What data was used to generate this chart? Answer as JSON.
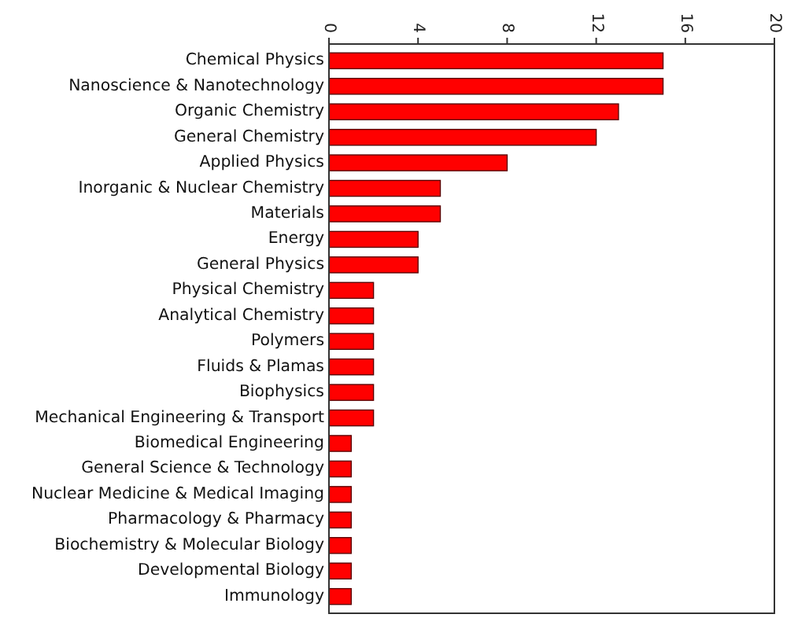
{
  "chart_data": {
    "type": "bar",
    "orientation": "horizontal",
    "categories": [
      "Chemical Physics",
      "Nanoscience & Nanotechnology",
      "Organic Chemistry",
      "General Chemistry",
      "Applied Physics",
      "Inorganic & Nuclear Chemistry",
      "Materials",
      "Energy",
      "General Physics",
      "Physical Chemistry",
      "Analytical Chemistry",
      "Polymers",
      "Fluids & Plamas",
      "Biophysics",
      "Mechanical Engineering & Transport",
      "Biomedical Engineering",
      "General Science & Technology",
      "Nuclear Medicine & Medical Imaging",
      "Pharmacology & Pharmacy",
      "Biochemistry & Molecular Biology",
      "Developmental Biology",
      "Immunology"
    ],
    "values": [
      15,
      15,
      13,
      12,
      8,
      5,
      5,
      4,
      4,
      2,
      2,
      2,
      2,
      2,
      2,
      1,
      1,
      1,
      1,
      1,
      1,
      1
    ],
    "color": "#ff0000",
    "xlim": [
      0,
      20
    ],
    "xticks": [
      0,
      4,
      8,
      12,
      16,
      20
    ],
    "grid": false
  }
}
